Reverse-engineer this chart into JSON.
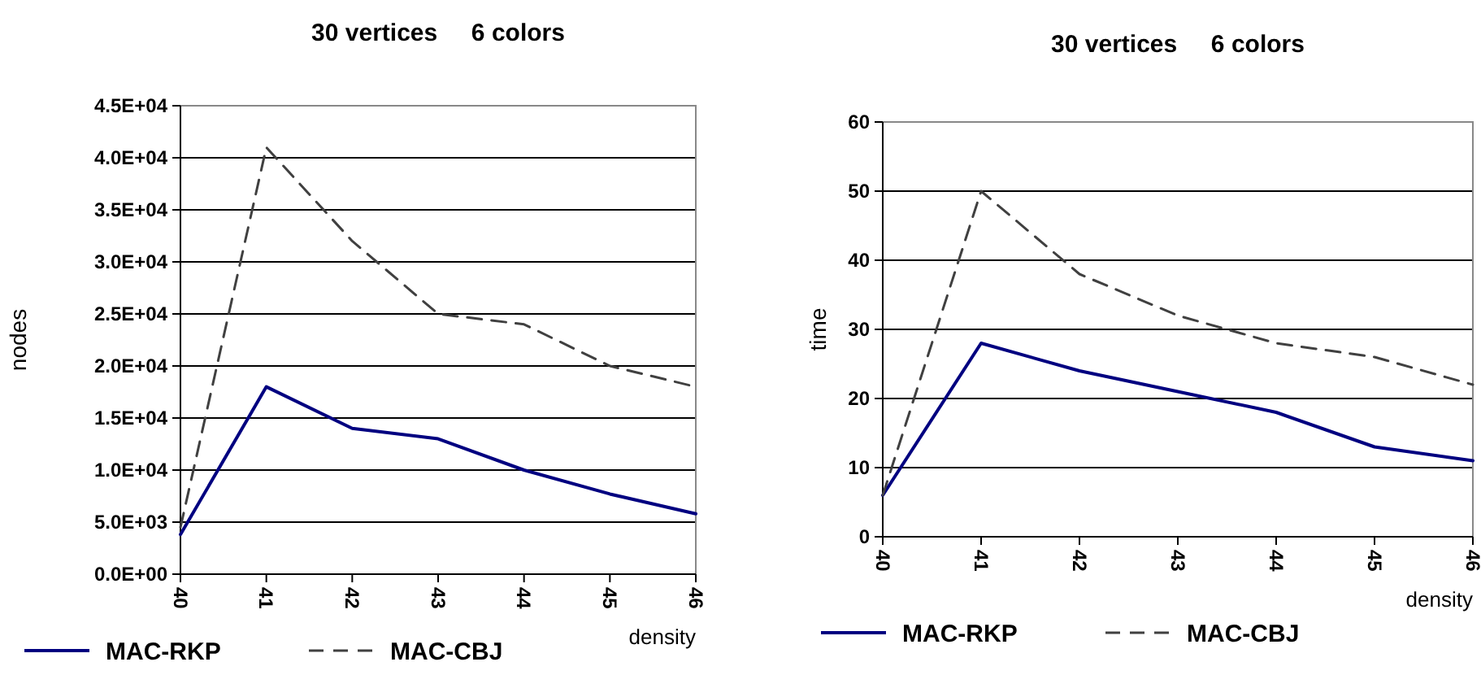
{
  "chart_data": [
    {
      "type": "line",
      "title": "30 vertices     6 colors",
      "xlabel": "density",
      "ylabel": "nodes",
      "x": [
        40,
        41,
        42,
        43,
        44,
        45,
        46
      ],
      "xlim": [
        40,
        46
      ],
      "xticks": [
        40,
        41,
        42,
        43,
        44,
        45,
        46
      ],
      "ylim": [
        0,
        45000
      ],
      "yticks": [
        {
          "value": 0,
          "label": "0.0E+00"
        },
        {
          "value": 5000,
          "label": "5.0E+03"
        },
        {
          "value": 10000,
          "label": "1.0E+04"
        },
        {
          "value": 15000,
          "label": "1.5E+04"
        },
        {
          "value": 20000,
          "label": "2.0E+04"
        },
        {
          "value": 25000,
          "label": "2.5E+04"
        },
        {
          "value": 30000,
          "label": "3.0E+04"
        },
        {
          "value": 35000,
          "label": "3.5E+04"
        },
        {
          "value": 40000,
          "label": "4.0E+04"
        },
        {
          "value": 45000,
          "label": "4.5E+04"
        }
      ],
      "grid": "y",
      "legend": "bottom",
      "marker": "none",
      "series": [
        {
          "name": "MAC-RKP",
          "color": "#000080",
          "line_style": "solid",
          "values": [
            3800,
            18000,
            14000,
            13000,
            10000,
            7700,
            5800
          ]
        },
        {
          "name": "MAC-CBJ",
          "color": "#404040",
          "line_style": "dashed",
          "values": [
            4500,
            41000,
            32000,
            25000,
            24000,
            20000,
            18000
          ]
        }
      ]
    },
    {
      "type": "line",
      "title": "30 vertices     6 colors",
      "xlabel": "density",
      "ylabel": "time",
      "x": [
        40,
        41,
        42,
        43,
        44,
        45,
        46
      ],
      "xlim": [
        40,
        46
      ],
      "xticks": [
        40,
        41,
        42,
        43,
        44,
        45,
        46
      ],
      "ylim": [
        0,
        60
      ],
      "yticks": [
        0,
        10,
        20,
        30,
        40,
        50,
        60
      ],
      "grid": "y",
      "legend": "bottom",
      "marker": "none",
      "series": [
        {
          "name": "MAC-RKP",
          "color": "#000080",
          "line_style": "solid",
          "values": [
            6,
            28,
            24,
            21,
            18,
            13,
            11
          ]
        },
        {
          "name": "MAC-CBJ",
          "color": "#404040",
          "line_style": "dashed",
          "values": [
            6,
            50,
            38,
            32,
            28,
            26,
            22
          ]
        }
      ]
    }
  ]
}
